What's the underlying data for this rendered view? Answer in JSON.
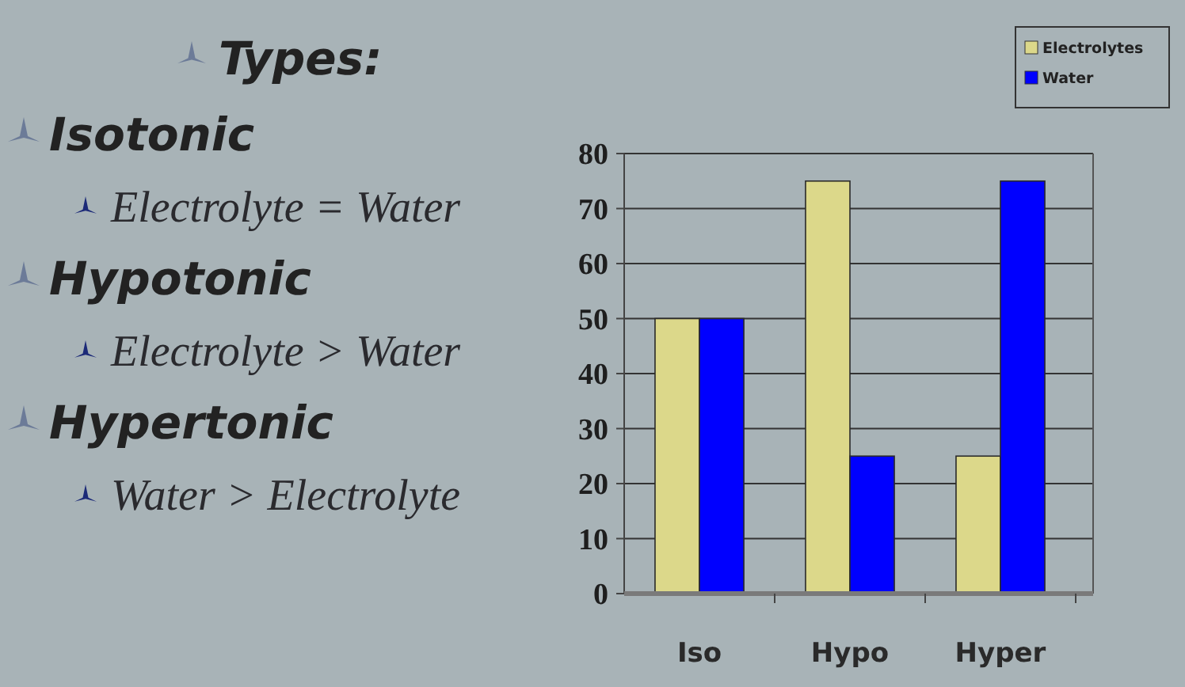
{
  "chart_data": [
    {
      "type": "other",
      "title": "Types:",
      "annotations": [
        "Isotonic",
        "Electrolyte = Water",
        "Hypotonic",
        "Electrolyte > Water",
        "Hypertonic",
        "Water > Electrolyte"
      ]
    },
    {
      "type": "bar",
      "categories": [
        "Iso",
        "Hypo",
        "Hyper"
      ],
      "series": [
        {
          "name": "Electrolytes",
          "color": "#dcd88a",
          "values": [
            50,
            75,
            25
          ]
        },
        {
          "name": "Water",
          "color": "#0000ff",
          "values": [
            50,
            25,
            75
          ]
        }
      ],
      "ylim": [
        0,
        80
      ],
      "yticks": [
        0,
        10,
        20,
        30,
        40,
        50,
        60,
        70,
        80
      ],
      "grid": "y",
      "legend": "top right"
    }
  ]
}
